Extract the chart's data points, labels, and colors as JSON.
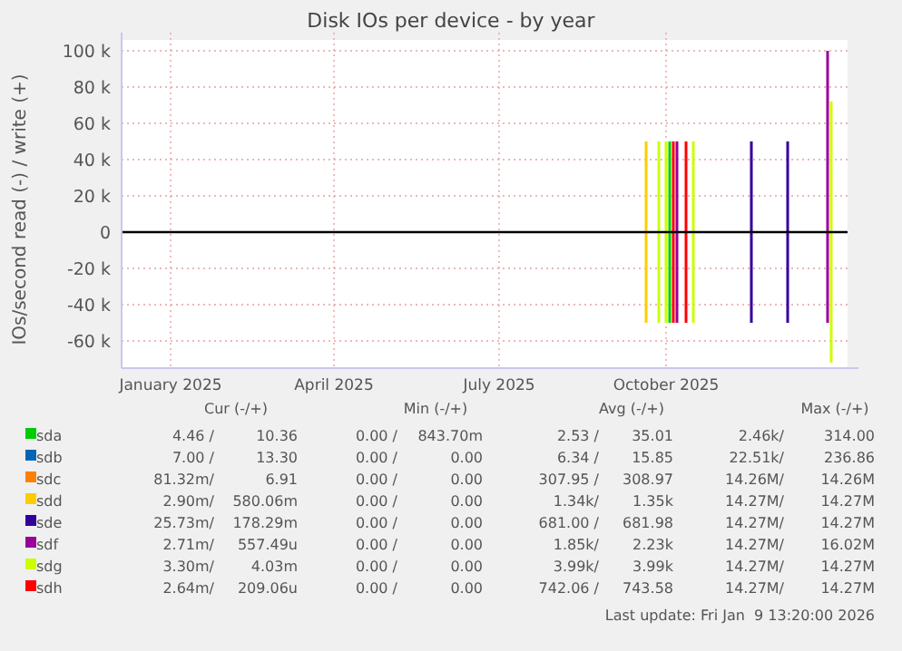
{
  "chart_data": {
    "type": "line",
    "title": "Disk IOs per device - by year",
    "ylabel": "IOs/second read (-) / write (+)",
    "xlim": [
      "2024-12-05",
      "2026-01-09"
    ],
    "xticks": [
      {
        "value": "2025-01-01",
        "label": "January 2025"
      },
      {
        "value": "2025-04-01",
        "label": "April 2025"
      },
      {
        "value": "2025-07-01",
        "label": "July 2025"
      },
      {
        "value": "2025-10-01",
        "label": "October 2025"
      }
    ],
    "ylim": [
      -75000,
      100000
    ],
    "yticks": [
      {
        "value": 100000,
        "label": "100 k"
      },
      {
        "value": 80000,
        "label": "80 k"
      },
      {
        "value": 60000,
        "label": "60 k"
      },
      {
        "value": 40000,
        "label": "40 k"
      },
      {
        "value": 20000,
        "label": "20 k"
      },
      0,
      {
        "value": -20000,
        "label": "-20 k"
      },
      {
        "value": -40000,
        "label": "-40 k"
      },
      {
        "value": -60000,
        "label": "-60 k"
      }
    ],
    "grid": true,
    "legend": "bottom",
    "line_style": "solid",
    "marker": "none",
    "ref_lines": [
      {
        "axis": "y",
        "value": 0,
        "color": "#000000"
      }
    ],
    "series": [
      {
        "name": "sda",
        "color": "#00cc00",
        "x": [
          "2025-10-03",
          "2025-10-03"
        ],
        "values": [
          50000,
          -50000
        ]
      },
      {
        "name": "sdb",
        "color": "#0066b3"
      },
      {
        "name": "sdc",
        "color": "#ff8000"
      },
      {
        "name": "sdd",
        "color": "#ffcc00",
        "x": [
          "2025-09-20",
          "2025-09-20"
        ],
        "values": [
          50000,
          -50000
        ]
      },
      {
        "name": "sde",
        "color": "#330099",
        "x": [
          "2025-11-17",
          "2025-11-17",
          "2025-11-30",
          "2025-12-07",
          "2025-12-07"
        ],
        "values": [
          50000,
          -50000,
          null,
          50000,
          -50000
        ]
      },
      {
        "name": "sdf",
        "color": "#990099",
        "x": [
          "2025-10-07",
          "2025-10-07",
          "2025-11-30",
          "2025-12-29",
          "2025-12-29"
        ],
        "values": [
          50000,
          -50000,
          null,
          100000,
          -50000
        ]
      },
      {
        "name": "sdg",
        "color": "#ccff00",
        "x": [
          "2025-09-27",
          "2025-09-27",
          "2025-09-29",
          "2025-10-01",
          "2025-10-01",
          "2025-10-10",
          "2025-10-16",
          "2025-10-16",
          "2025-11-30",
          "2025-12-31",
          "2025-12-31"
        ],
        "values": [
          50000,
          -50000,
          null,
          50000,
          -50000,
          null,
          50000,
          -50000,
          null,
          72000,
          -72000
        ]
      },
      {
        "name": "sdh",
        "color": "#ff0000",
        "x": [
          "2025-10-05",
          "2025-10-05",
          "2025-10-08",
          "2025-10-12",
          "2025-10-12"
        ],
        "values": [
          50000,
          -50000,
          null,
          50000,
          -50000
        ]
      }
    ],
    "annotations": [
      "Cur (-/+)",
      "Min (-/+)",
      "Avg (-/+)",
      "Max (-/+)",
      "4.46 /",
      "10.36",
      "0.00 /",
      "843.70m",
      "2.53 /",
      "35.01",
      "2.46k/",
      "314.00",
      "7.00 /",
      "13.30",
      "0.00 /",
      "0.00",
      "6.34 /",
      "15.85",
      "22.51k/",
      "236.86",
      "81.32m/",
      "6.91",
      "0.00 /",
      "0.00",
      "307.95 /",
      "308.97",
      "14.26M/",
      "14.26M",
      "2.90m/",
      "580.06m",
      "0.00 /",
      "0.00",
      "1.34k/",
      "1.35k",
      "14.27M/",
      "14.27M",
      "25.73m/",
      "178.29m",
      "0.00 /",
      "0.00",
      "681.00 /",
      "681.98",
      "14.27M/",
      "14.27M",
      "2.71m/",
      "557.49u",
      "0.00 /",
      "0.00",
      "1.85k/",
      "2.23k",
      "14.27M/",
      "16.02M",
      "3.30m/",
      "4.03m",
      "0.00 /",
      "0.00",
      "3.99k/",
      "3.99k",
      "14.27M/",
      "14.27M",
      "2.64m/",
      "209.06u",
      "0.00 /",
      "0.00",
      "742.06 /",
      "743.58",
      "14.27M/",
      "14.27M",
      "Last update: Fri Jan  9 13:20:00 2026"
    ]
  }
}
